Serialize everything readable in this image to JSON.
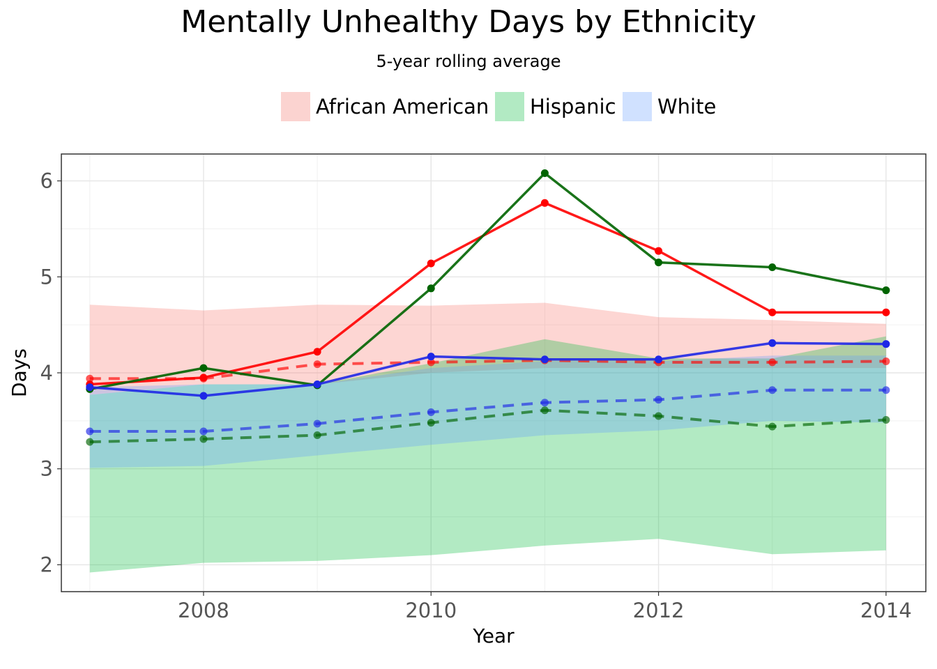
{
  "chart_data": {
    "type": "line",
    "title": "Mentally Unhealthy Days by Ethnicity",
    "subtitle": "5-year rolling average",
    "xlabel": "Year",
    "ylabel": "Days",
    "xlim": [
      2006.75,
      2014.35
    ],
    "ylim": [
      1.72,
      6.28
    ],
    "x_ticks": [
      2008,
      2010,
      2012,
      2014
    ],
    "y_ticks": [
      2,
      3,
      4,
      5,
      6
    ],
    "grid": true,
    "legend_position": "top",
    "x": [
      2007,
      2008,
      2009,
      2010,
      2011,
      2012,
      2013,
      2014
    ],
    "series": [
      {
        "name": "African American",
        "fill_color": "#f8766d",
        "line_color": "#ff0000",
        "values": [
          3.88,
          3.95,
          4.22,
          5.14,
          5.77,
          5.27,
          4.63,
          4.63
        ],
        "rolling_average": [
          3.94,
          3.94,
          4.09,
          4.11,
          4.13,
          4.11,
          4.11,
          4.12
        ],
        "band_low": [
          3.77,
          3.88,
          3.88,
          4.0,
          4.05,
          4.05,
          4.05,
          4.05
        ],
        "band_high": [
          4.71,
          4.65,
          4.71,
          4.7,
          4.73,
          4.58,
          4.55,
          4.51
        ]
      },
      {
        "name": "Hispanic",
        "fill_color": "#00ba38",
        "line_color": "#006400",
        "values": [
          3.83,
          4.05,
          3.87,
          4.88,
          6.08,
          5.15,
          5.1,
          4.86
        ],
        "rolling_average": [
          3.28,
          3.31,
          3.35,
          3.48,
          3.61,
          3.55,
          3.44,
          3.51
        ],
        "band_low": [
          1.92,
          2.02,
          2.04,
          2.1,
          2.2,
          2.27,
          2.11,
          2.15
        ],
        "band_high": [
          3.77,
          3.88,
          3.88,
          4.1,
          4.35,
          4.15,
          4.15,
          4.38
        ]
      },
      {
        "name": "White",
        "fill_color": "#619cff",
        "line_color": "#1e28e6",
        "values": [
          3.85,
          3.76,
          3.88,
          4.17,
          4.14,
          4.14,
          4.31,
          4.3
        ],
        "rolling_average": [
          3.39,
          3.39,
          3.47,
          3.59,
          3.69,
          3.72,
          3.82,
          3.82
        ],
        "band_low": [
          3.01,
          3.03,
          3.14,
          3.25,
          3.35,
          3.4,
          3.5,
          3.48
        ],
        "band_high": [
          3.85,
          3.88,
          3.88,
          4.05,
          4.12,
          4.12,
          4.18,
          4.18
        ]
      }
    ]
  }
}
